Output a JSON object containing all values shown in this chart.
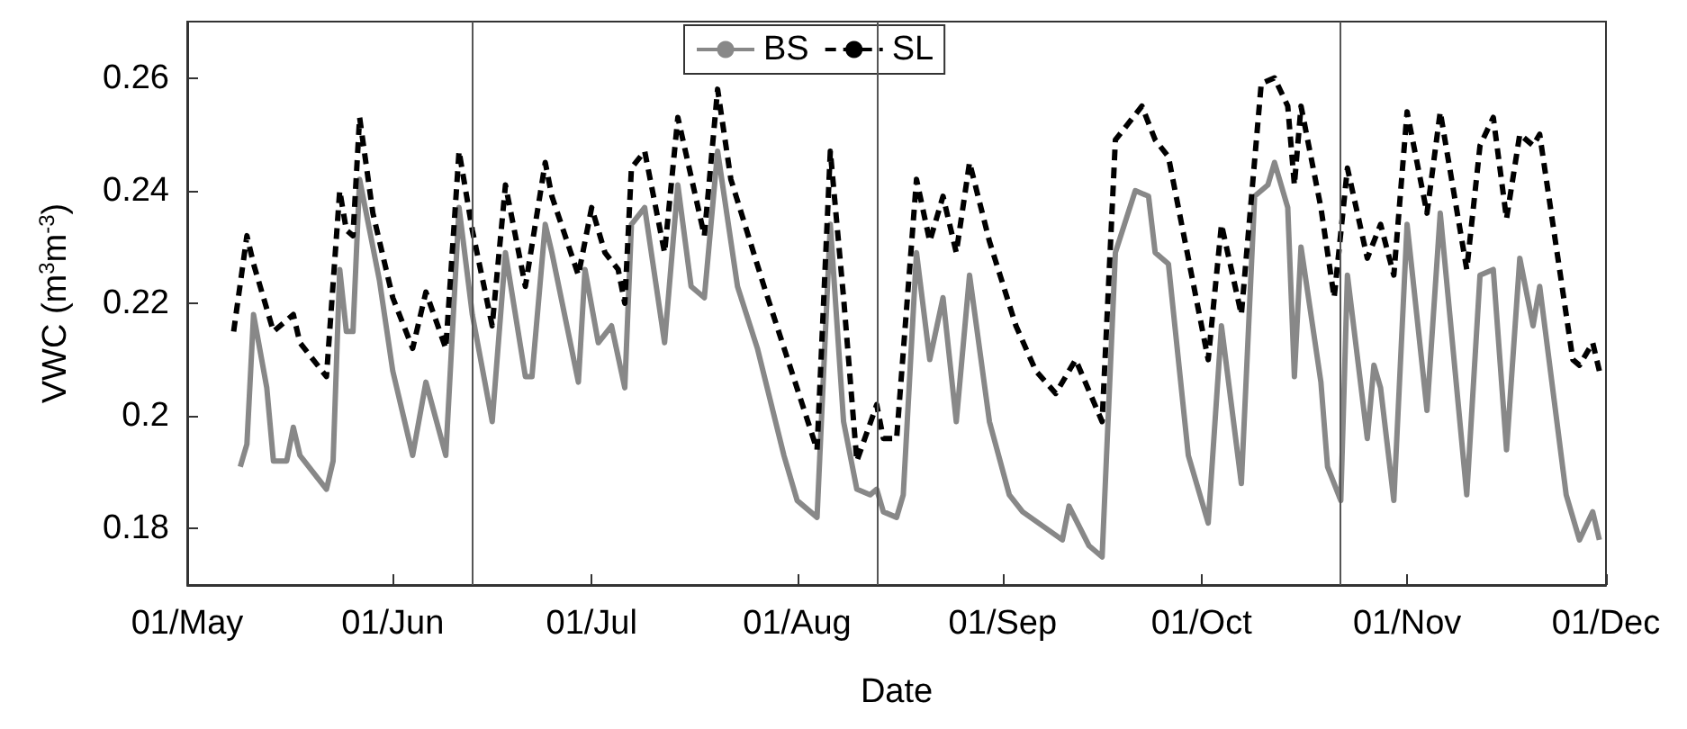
{
  "chart_data": {
    "type": "line",
    "xlabel": "Date",
    "ylabel": "VWC (m$^{3}$m$^{-3}$)",
    "xlim": [
      "--05-01",
      "--12-01"
    ],
    "xticks": [
      {
        "value": "--05-01",
        "label": "01/May"
      },
      {
        "value": "--06-01",
        "label": "01/Jun"
      },
      {
        "value": "--07-01",
        "label": "01/Jul"
      },
      {
        "value": "--08-01",
        "label": "01/Aug"
      },
      {
        "value": "--09-01",
        "label": "01/Sep"
      },
      {
        "value": "--10-01",
        "label": "01/Oct"
      },
      {
        "value": "--11-01",
        "label": "01/Nov"
      },
      {
        "value": "--12-01",
        "label": "01/Dec"
      }
    ],
    "ylim": [
      0.17,
      0.27
    ],
    "yticks": [
      0.18,
      0.2,
      0.22,
      0.24,
      0.26
    ],
    "grid": false,
    "legend": "top",
    "marker": "none",
    "ref_lines": [
      {
        "axis": "x",
        "value": "--06-13",
        "color": "#555555"
      },
      {
        "axis": "x",
        "value": "--08-13",
        "color": "#555555"
      },
      {
        "axis": "x",
        "value": "--10-22",
        "color": "#555555"
      }
    ],
    "series": [
      {
        "name": "BS",
        "color": "#888888",
        "line_style": "solid",
        "x": [
          "--05-09",
          "--05-10",
          "--05-11",
          "--05-13",
          "--05-14",
          "--05-16",
          "--05-17",
          "--05-18",
          "--05-20",
          "--05-22",
          "--05-23",
          "--05-24",
          "--05-25",
          "--05-26",
          "--05-27",
          "--05-30",
          "--06-01",
          "--06-04",
          "--06-06",
          "--06-09",
          "--06-11",
          "--06-13",
          "--06-16",
          "--06-18",
          "--06-21",
          "--06-22",
          "--06-24",
          "--06-25",
          "--06-29",
          "--06-30",
          "--07-02",
          "--07-04",
          "--07-06",
          "--07-07",
          "--07-09",
          "--07-12",
          "--07-14",
          "--07-16",
          "--07-18",
          "--07-20",
          "--07-23",
          "--07-26",
          "--07-30",
          "--08-01",
          "--08-04",
          "--08-06",
          "--08-08",
          "--08-10",
          "--08-12",
          "--08-13",
          "--08-14",
          "--08-16",
          "--08-17",
          "--08-19",
          "--08-21",
          "--08-23",
          "--08-25",
          "--08-27",
          "--08-30",
          "--09-02",
          "--09-04",
          "--09-10",
          "--09-11",
          "--09-14",
          "--09-16",
          "--09-18",
          "--09-21",
          "--09-23",
          "--09-24",
          "--09-26",
          "--09-29",
          "--10-02",
          "--10-04",
          "--10-07",
          "--10-09",
          "--10-11",
          "--10-12",
          "--10-14",
          "--10-15",
          "--10-16",
          "--10-19",
          "--10-20",
          "--10-22",
          "--10-23",
          "--10-26",
          "--10-27",
          "--10-28",
          "--10-30",
          "--11-01",
          "--11-04",
          "--11-06",
          "--11-10",
          "--11-12",
          "--11-14",
          "--11-16",
          "--11-18",
          "--11-20",
          "--11-21",
          "--11-25",
          "--11-27",
          "--11-29",
          "--11-30"
        ],
        "values": [
          0.191,
          0.195,
          0.218,
          0.205,
          0.192,
          0.192,
          0.198,
          0.193,
          0.19,
          0.187,
          0.192,
          0.226,
          0.215,
          0.215,
          0.242,
          0.224,
          0.208,
          0.193,
          0.206,
          0.193,
          0.237,
          0.218,
          0.199,
          0.229,
          0.207,
          0.207,
          0.234,
          0.229,
          0.206,
          0.226,
          0.213,
          0.216,
          0.205,
          0.234,
          0.237,
          0.213,
          0.241,
          0.223,
          0.221,
          0.247,
          0.223,
          0.212,
          0.193,
          0.185,
          0.182,
          0.234,
          0.199,
          0.187,
          0.186,
          0.187,
          0.183,
          0.182,
          0.186,
          0.229,
          0.21,
          0.221,
          0.199,
          0.225,
          0.199,
          0.186,
          0.183,
          0.178,
          0.184,
          0.177,
          0.175,
          0.229,
          0.24,
          0.239,
          0.229,
          0.227,
          0.193,
          0.181,
          0.216,
          0.188,
          0.239,
          0.241,
          0.245,
          0.237,
          0.207,
          0.23,
          0.206,
          0.191,
          0.185,
          0.225,
          0.196,
          0.209,
          0.205,
          0.185,
          0.234,
          0.201,
          0.236,
          0.186,
          0.225,
          0.226,
          0.194,
          0.228,
          0.216,
          0.223,
          0.186,
          0.178,
          0.183,
          0.178
        ]
      },
      {
        "name": "SL",
        "color": "#000000",
        "line_style": "dashed",
        "x": [
          "--05-08",
          "--05-10",
          "--05-11",
          "--05-14",
          "--05-17",
          "--05-18",
          "--05-22",
          "--05-24",
          "--05-25",
          "--05-26",
          "--05-27",
          "--05-29",
          "--06-01",
          "--06-04",
          "--06-06",
          "--06-09",
          "--06-11",
          "--06-13",
          "--06-16",
          "--06-18",
          "--06-21",
          "--06-24",
          "--06-25",
          "--06-29",
          "--07-01",
          "--07-03",
          "--07-05",
          "--07-06",
          "--07-07",
          "--07-09",
          "--07-12",
          "--07-14",
          "--07-18",
          "--07-20",
          "--07-22",
          "--07-27",
          "--08-04",
          "--08-06",
          "--08-08",
          "--08-10",
          "--08-13",
          "--08-14",
          "--08-16",
          "--08-19",
          "--08-21",
          "--08-23",
          "--08-25",
          "--08-27",
          "--08-30",
          "--09-03",
          "--09-06",
          "--09-09",
          "--09-12",
          "--09-16",
          "--09-18",
          "--09-22",
          "--09-24",
          "--09-26",
          "--10-02",
          "--10-04",
          "--10-07",
          "--10-10",
          "--10-12",
          "--10-14",
          "--10-15",
          "--10-16",
          "--10-19",
          "--10-21",
          "--10-23",
          "--10-26",
          "--10-28",
          "--10-30",
          "--11-01",
          "--11-04",
          "--11-06",
          "--11-10",
          "--11-12",
          "--11-14",
          "--11-16",
          "--11-18",
          "--11-20",
          "--11-21",
          "--11-26",
          "--11-27",
          "--11-29",
          "--11-30"
        ],
        "values": [
          0.215,
          0.232,
          0.227,
          0.215,
          0.218,
          0.213,
          0.207,
          0.24,
          0.233,
          0.232,
          0.253,
          0.236,
          0.221,
          0.212,
          0.222,
          0.212,
          0.247,
          0.233,
          0.216,
          0.241,
          0.223,
          0.245,
          0.239,
          0.225,
          0.237,
          0.229,
          0.226,
          0.22,
          0.244,
          0.247,
          0.229,
          0.253,
          0.232,
          0.258,
          0.242,
          0.223,
          0.194,
          0.247,
          0.221,
          0.192,
          0.202,
          0.196,
          0.196,
          0.242,
          0.231,
          0.239,
          0.229,
          0.245,
          0.231,
          0.216,
          0.208,
          0.204,
          0.21,
          0.199,
          0.249,
          0.255,
          0.249,
          0.246,
          0.21,
          0.234,
          0.218,
          0.259,
          0.26,
          0.255,
          0.241,
          0.255,
          0.237,
          0.221,
          0.244,
          0.228,
          0.234,
          0.225,
          0.254,
          0.236,
          0.254,
          0.226,
          0.248,
          0.253,
          0.235,
          0.25,
          0.248,
          0.25,
          0.21,
          0.209,
          0.213,
          0.208
        ]
      }
    ]
  }
}
